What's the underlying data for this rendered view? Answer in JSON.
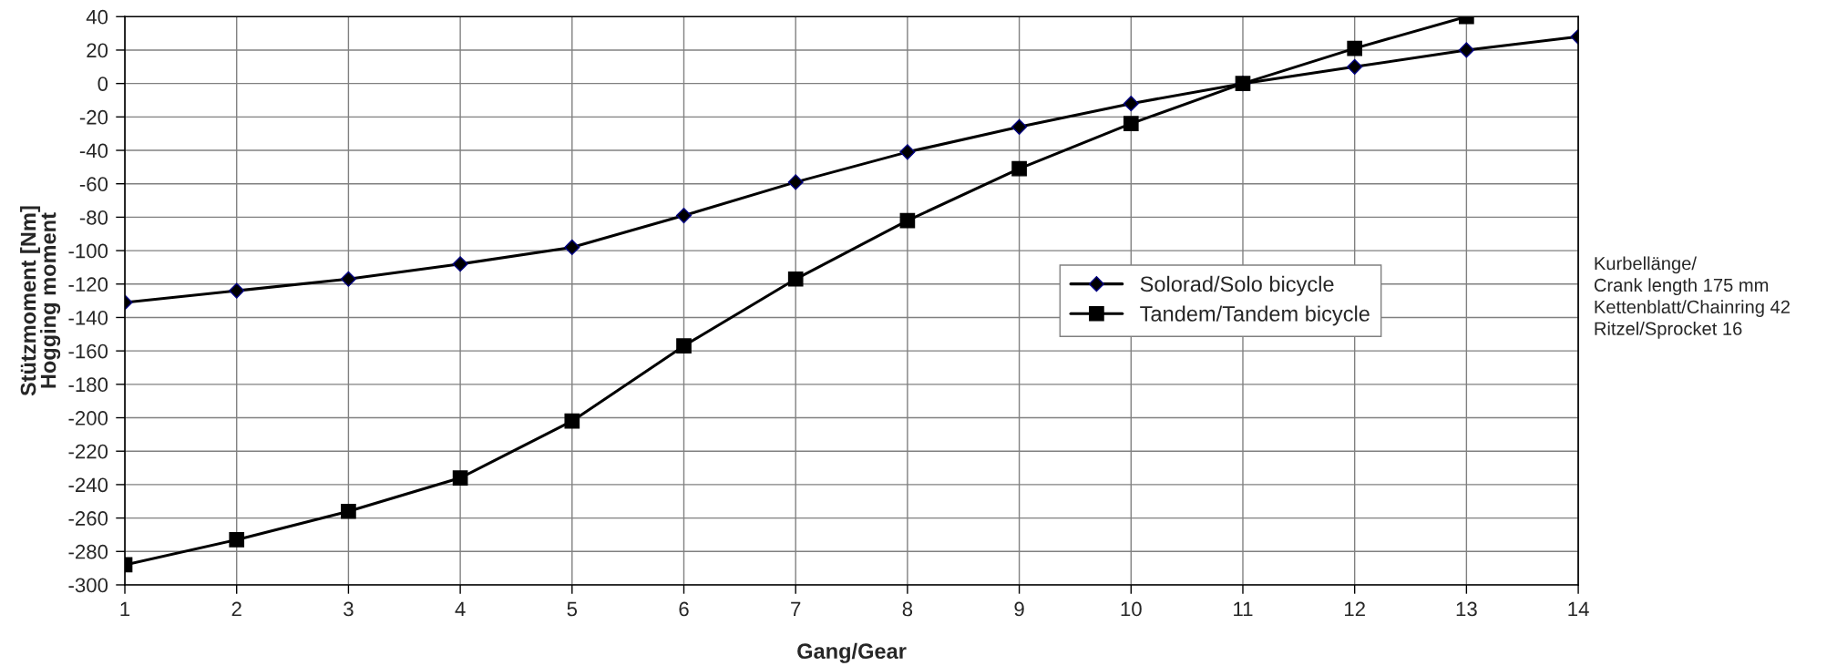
{
  "chart_data": {
    "type": "line",
    "xlabel": "Gang/Gear",
    "ylabel": "Stützmoment [Nm]\nHogging moment",
    "x": [
      1,
      2,
      3,
      4,
      5,
      6,
      7,
      8,
      9,
      10,
      11,
      12,
      13,
      14
    ],
    "series": [
      {
        "name": "Solorad/Solo bicycle",
        "color": "#000000",
        "marker": "diamond",
        "values": [
          -131,
          -124,
          -117,
          -108,
          -98,
          -79,
          -59,
          -41,
          -26,
          -12,
          0,
          10,
          20,
          28
        ]
      },
      {
        "name": "Tandem/Tandem bicycle",
        "color": "#000000",
        "marker": "square",
        "x": [
          1,
          2,
          3,
          4,
          5,
          6,
          7,
          8,
          9,
          10,
          11,
          12,
          13
        ],
        "values": [
          -288,
          -273,
          -256,
          -236,
          -202,
          -157,
          -117,
          -82,
          -51,
          -24,
          0,
          21,
          40
        ]
      }
    ],
    "xlim": [
      1,
      14
    ],
    "xticks": [
      1,
      2,
      3,
      4,
      5,
      6,
      7,
      8,
      9,
      10,
      11,
      12,
      13,
      14
    ],
    "ylim": [
      -300,
      40
    ],
    "yticks": [
      -300,
      -280,
      -260,
      -240,
      -220,
      -200,
      -180,
      -160,
      -140,
      -120,
      -100,
      -80,
      -60,
      -40,
      -20,
      0,
      20,
      40
    ],
    "grid": true,
    "legend": "center right",
    "line_style": "solid",
    "annotations": [
      "Kurbellänge/\nCrank length 175 mm\nKettenblatt/Chainring 42\nRitzel/Sprocket 16"
    ]
  }
}
